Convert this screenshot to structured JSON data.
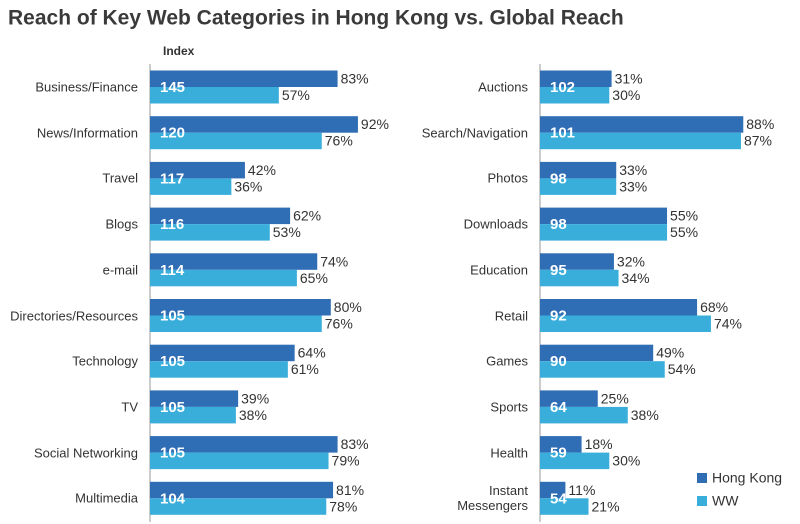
{
  "chart_data": [
    {
      "type": "bar",
      "orientation": "horizontal",
      "title": "Reach of Key Web Categories in Hong Kong vs. Global Reach",
      "index_label": "Index",
      "categories": [
        "Business/Finance",
        "News/Information",
        "Travel",
        "Blogs",
        "e-mail",
        "Directories/Resources",
        "Technology",
        "TV",
        "Social Networking",
        "Multimedia"
      ],
      "index": [
        145,
        120,
        117,
        116,
        114,
        105,
        105,
        105,
        105,
        104
      ],
      "xlim": [
        0,
        100
      ],
      "series": [
        {
          "color": "#2f6db5",
          "values": [
            83,
            92,
            42,
            62,
            74,
            80,
            64,
            39,
            83,
            81
          ],
          "value_labels": [
            "83%",
            "92%",
            "42%",
            "62%",
            "74%",
            "80%",
            "64%",
            "39%",
            "83%",
            "81%"
          ]
        },
        {
          "color": "#3aaedb",
          "values": [
            57,
            76,
            36,
            53,
            65,
            76,
            61,
            38,
            79,
            78
          ],
          "value_labels": [
            "57%",
            "76%",
            "36%",
            "53%",
            "65%",
            "76%",
            "61%",
            "38%",
            "79%",
            "78%"
          ]
        }
      ]
    },
    {
      "type": "bar",
      "orientation": "horizontal",
      "categories": [
        "Auctions",
        "Search/Navigation",
        "Photos",
        "Downloads",
        "Education",
        "Retail",
        "Games",
        "Sports",
        "Health",
        "Instant\nMessengers"
      ],
      "index": [
        102,
        101,
        98,
        98,
        95,
        92,
        90,
        64,
        59,
        54
      ],
      "xlim": [
        0,
        100
      ],
      "legend": "lower right",
      "series": [
        {
          "name": "Hong Kong",
          "color": "#2f6db5",
          "values": [
            31,
            88,
            33,
            55,
            32,
            68,
            49,
            25,
            18,
            11
          ],
          "value_labels": [
            "31%",
            "88%",
            "33%",
            "55%",
            "32%",
            "68%",
            "49%",
            "25%",
            "18%",
            "11%"
          ]
        },
        {
          "name": "WW",
          "color": "#3aaedb",
          "values": [
            30,
            87,
            33,
            55,
            34,
            74,
            54,
            38,
            30,
            21
          ],
          "value_labels": [
            "30%",
            "87%",
            "33%",
            "55%",
            "34%",
            "74%",
            "54%",
            "38%",
            "30%",
            "21%"
          ]
        }
      ]
    }
  ]
}
